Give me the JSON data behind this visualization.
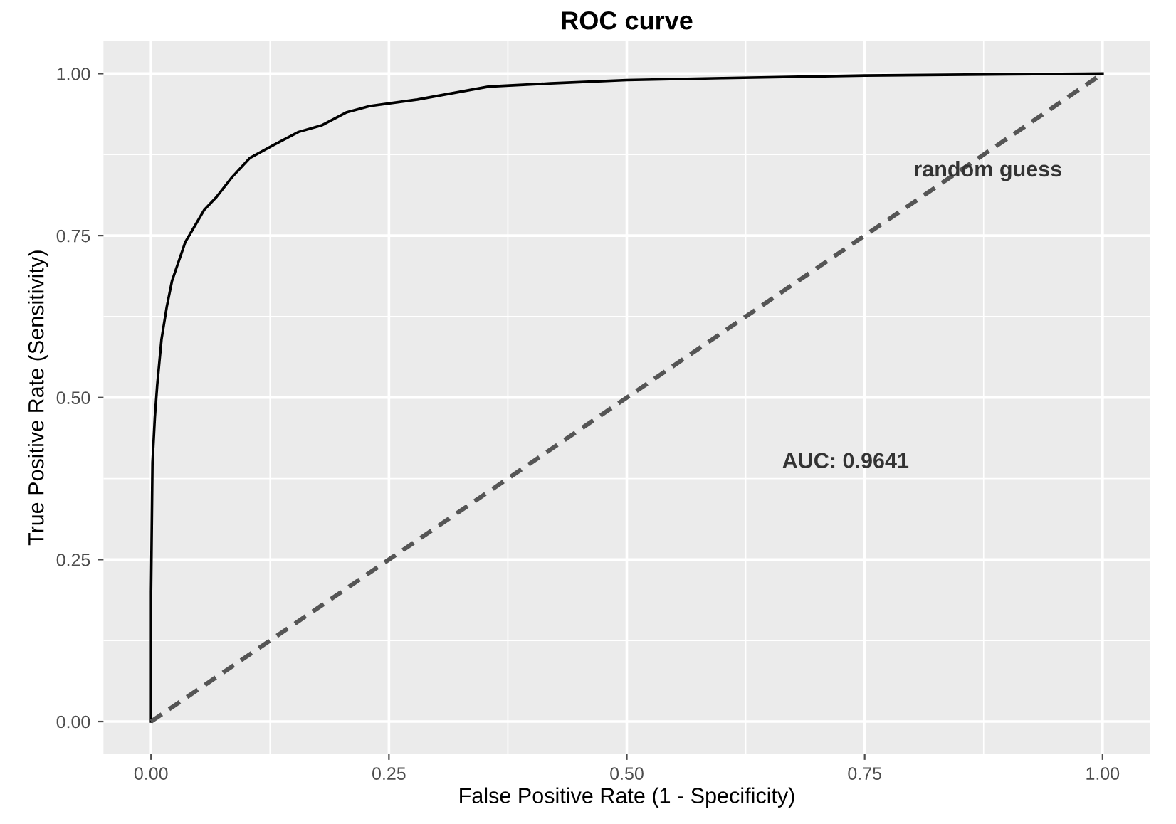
{
  "chart_data": {
    "type": "line",
    "title": "ROC curve",
    "xlabel": "False Positive Rate (1 - Specificity)",
    "ylabel": "True Positive Rate (Sensitivity)",
    "series": [
      {
        "color": "#000000",
        "line_style": "solid",
        "x": [
          0,
          0,
          0.0015,
          0.004,
          0.0065,
          0.011,
          0.0165,
          0.022,
          0.029,
          0.036,
          0.044,
          0.056,
          0.069,
          0.085,
          0.104,
          0.129,
          0.155,
          0.179,
          0.205,
          0.23,
          0.28,
          0.355,
          0.42,
          0.5,
          0.6,
          0.75,
          0.9,
          1
        ],
        "values": [
          0,
          0.2,
          0.4,
          0.47,
          0.52,
          0.59,
          0.64,
          0.68,
          0.71,
          0.74,
          0.76,
          0.79,
          0.81,
          0.84,
          0.87,
          0.89,
          0.91,
          0.92,
          0.94,
          0.95,
          0.96,
          0.98,
          0.985,
          0.99,
          0.993,
          0.997,
          0.999,
          1
        ]
      },
      {
        "color": "#555555",
        "line_style": "dashed",
        "x": [
          0,
          1
        ],
        "values": [
          0,
          1
        ]
      }
    ],
    "annotations": [
      "random guess",
      "AUC: 0.9641"
    ],
    "xlim": [
      -0.05,
      1.05
    ],
    "ylim": [
      -0.05,
      1.05
    ],
    "xticks": [
      {
        "value": 0,
        "label": "0.00"
      },
      {
        "value": 0.25,
        "label": "0.25"
      },
      {
        "value": 0.5,
        "label": "0.50"
      },
      {
        "value": 0.75,
        "label": "0.75"
      },
      {
        "value": 1,
        "label": "1.00"
      }
    ],
    "yticks": [
      {
        "value": 0,
        "label": "0.00"
      },
      {
        "value": 0.25,
        "label": "0.25"
      },
      {
        "value": 0.5,
        "label": "0.50"
      },
      {
        "value": 0.75,
        "label": "0.75"
      },
      {
        "value": 1,
        "label": "1.00"
      }
    ],
    "grid": true
  }
}
